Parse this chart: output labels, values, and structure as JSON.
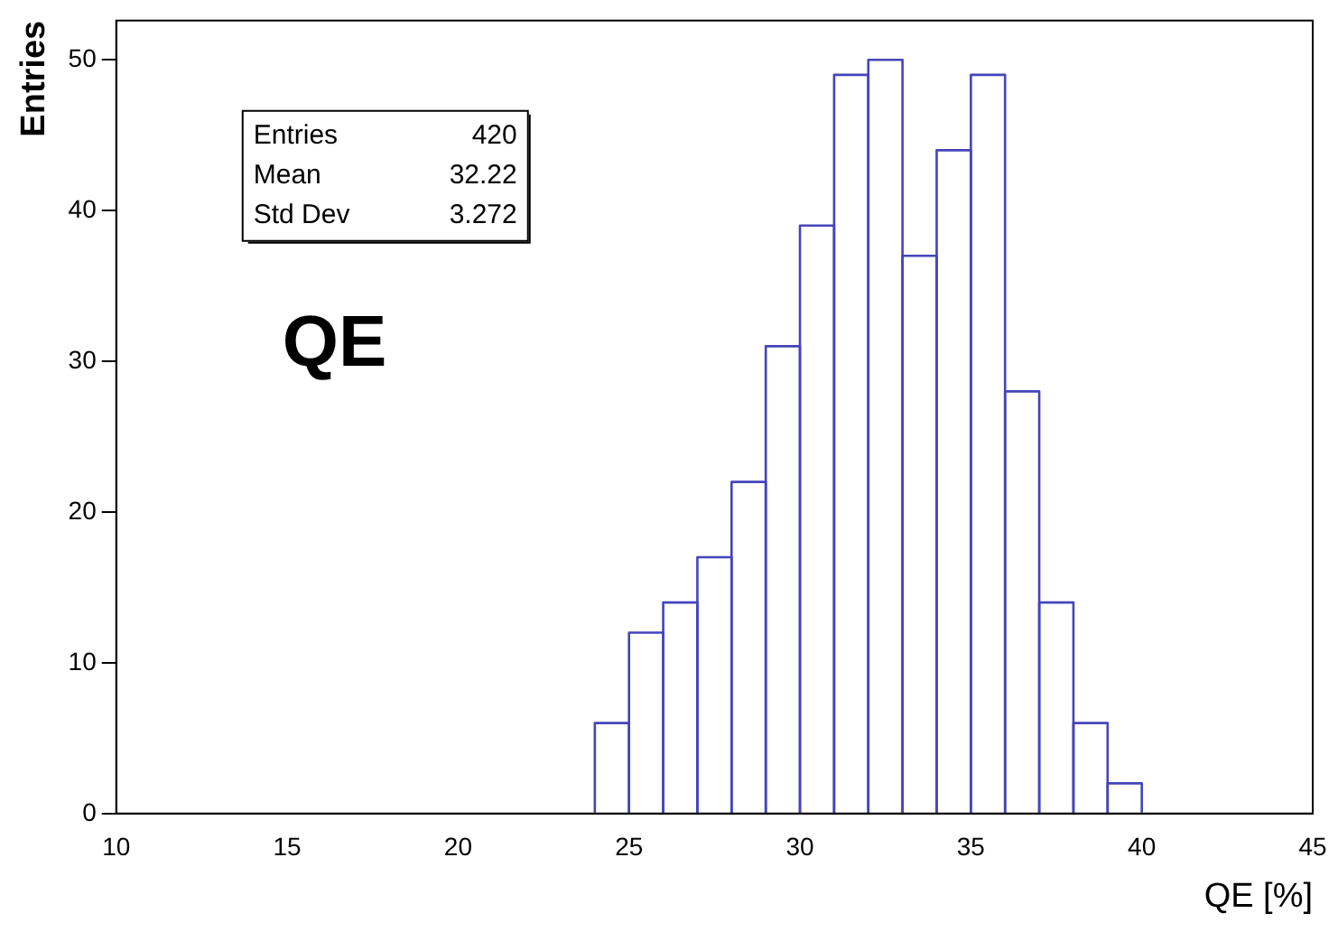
{
  "chart_data": {
    "type": "histogram",
    "xlabel": "QE [%]",
    "ylabel": "Entries",
    "bins": [
      24,
      25,
      26,
      27,
      28,
      29,
      30,
      31,
      32,
      33,
      34,
      35,
      36,
      37,
      38,
      39,
      40
    ],
    "values": [
      6,
      12,
      14,
      17,
      22,
      31,
      39,
      49,
      50,
      37,
      44,
      49,
      28,
      14,
      6,
      2
    ],
    "color": "#4444bb",
    "xlim": [
      10,
      45
    ],
    "xticks": [
      10,
      15,
      20,
      25,
      30,
      35,
      40,
      45
    ],
    "ylim": [
      0,
      52.6
    ],
    "yticks": [
      0,
      10,
      20,
      30,
      40,
      50
    ],
    "grid": false,
    "legend": false,
    "annotations": [
      "Entries 420",
      "Mean 32.22",
      "Std Dev 3.272",
      "QE"
    ]
  }
}
